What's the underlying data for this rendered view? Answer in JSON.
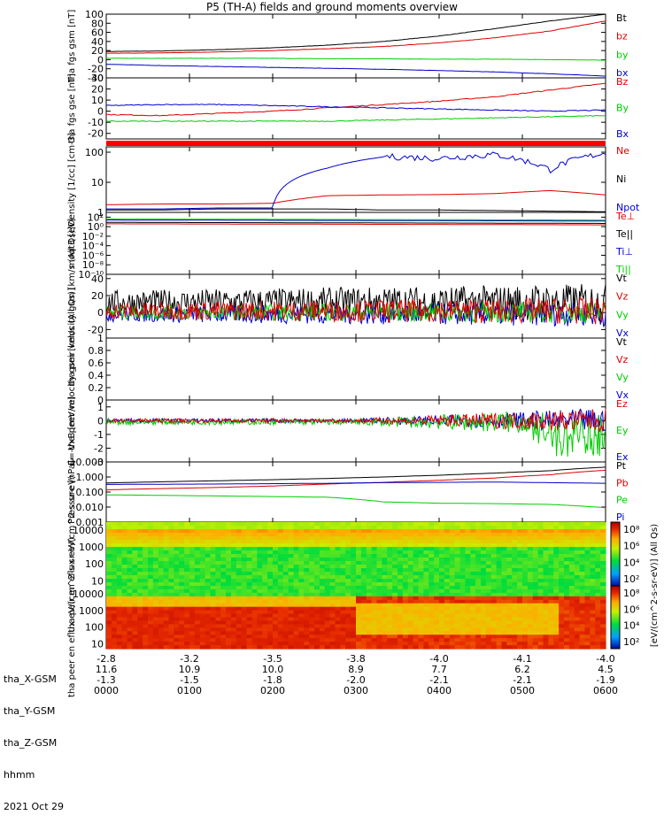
{
  "title": "P5 (TH-A) fields and ground moments overview",
  "chart_data": {
    "type": "line",
    "panels": [
      {
        "ylabel": "tha fgs gsm [nT]",
        "ylim": [
          -40,
          100
        ],
        "yticks": [
          -40,
          -20,
          0,
          20,
          40,
          60,
          80,
          100
        ],
        "series": [
          {
            "name": "Bt",
            "color": "#000000",
            "values": [
              18,
              19,
              22,
              26,
              32,
              40,
              52,
              68,
              85,
              100
            ]
          },
          {
            "name": "bz",
            "color": "#dd0000",
            "values": [
              14,
              15,
              17,
              20,
              24,
              29,
              37,
              48,
              63,
              85
            ]
          },
          {
            "name": "by",
            "color": "#00cc00",
            "values": [
              3,
              3,
              3,
              3,
              2,
              2,
              1,
              1,
              0,
              -1
            ]
          },
          {
            "name": "bx",
            "color": "#0000cc",
            "values": [
              -10,
              -13,
              -15,
              -17,
              -19,
              -21,
              -24,
              -27,
              -31,
              -36
            ]
          }
        ]
      },
      {
        "ylabel": "tha fgs gse [nT]",
        "ylim": [
          -25,
          30
        ],
        "yticks": [
          -20,
          -10,
          0,
          10,
          20,
          30
        ],
        "series": [
          {
            "name": "Bz",
            "color": "#dd0000",
            "values": [
              -3,
              -4,
              -2,
              0,
              3,
              6,
              9,
              13,
              19,
              25
            ]
          },
          {
            "name": "By",
            "color": "#00cc00",
            "values": [
              -9,
              -9,
              -9,
              -9,
              -9,
              -8,
              -7,
              -6,
              -5,
              -4
            ]
          },
          {
            "name": "Bx",
            "color": "#0000cc",
            "values": [
              5,
              6,
              6,
              5,
              4,
              3,
              2,
              1,
              0,
              1
            ]
          }
        ]
      },
      {
        "ylabel": "Density [1/cc] [cm-3]",
        "log": true,
        "ylim": [
          1,
          150
        ],
        "yticks": [
          1,
          10,
          100
        ],
        "series": [
          {
            "name": "Ne",
            "color": "#dd0000",
            "values": [
              1.8,
              1.9,
              1.9,
              2.0,
              3.6,
              3.8,
              3.9,
              4.2,
              5.3,
              3.8
            ]
          },
          {
            "name": "Ni",
            "color": "#000000",
            "values": [
              1.2,
              1.2,
              1.3,
              1.3,
              1.3,
              1.2,
              1.2,
              1.15,
              1.1,
              1.05
            ]
          },
          {
            "name": "Npot",
            "color": "#0000cc",
            "values": [
              1.3,
              1.3,
              1.4,
              1.4,
              30,
              70,
              60,
              80,
              25,
              90
            ]
          }
        ]
      },
      {
        "ylabel": "moqt3 [eV]",
        "log": true,
        "ylim": [
          1e-10,
          1000
        ],
        "yticks": [
          "10^-10",
          "10^-8",
          "10^-6",
          "10^-4",
          "10^-2",
          "10^0",
          "10^2"
        ],
        "series": [
          {
            "name": "Te⊥",
            "color": "#dd0000",
            "values": []
          },
          {
            "name": "Te||",
            "color": "#000000",
            "values": []
          },
          {
            "name": "Ti⊥",
            "color": "#0000cc",
            "values": []
          },
          {
            "name": "Ti||",
            "color": "#00cc00",
            "values": []
          }
        ]
      },
      {
        "ylabel": "tha peir velocity gsm [km/s (All Qs)]",
        "ylim": [
          -30,
          45
        ],
        "yticks": [
          -20,
          0,
          20,
          40
        ],
        "series": [
          {
            "name": "Vt",
            "color": "#000000"
          },
          {
            "name": "Vz",
            "color": "#dd0000"
          },
          {
            "name": "Vy",
            "color": "#00cc00"
          },
          {
            "name": "Vx",
            "color": "#0000cc"
          }
        ]
      },
      {
        "ylabel": "tha peer velocity gsm [km/s (All Qs)]",
        "ylim": [
          0,
          1
        ],
        "yticks": [
          0.0,
          0.2,
          0.4,
          0.6,
          0.8,
          1.0
        ],
        "series": [
          {
            "name": "Vt",
            "color": "#000000"
          },
          {
            "name": "Vz",
            "color": "#dd0000"
          },
          {
            "name": "Vy",
            "color": "#00cc00"
          },
          {
            "name": "Vx",
            "color": "#0000cc"
          }
        ]
      },
      {
        "ylabel": "E=-VxB [mV/m]",
        "ylim": [
          -3,
          1.5
        ],
        "yticks": [
          -3,
          -2,
          -1,
          0,
          1
        ],
        "series": [
          {
            "name": "Ez",
            "color": "#dd0000"
          },
          {
            "name": "Ey",
            "color": "#00cc00"
          },
          {
            "name": "Ex",
            "color": "#0000cc"
          }
        ]
      },
      {
        "ylabel": "Pressure [nPa]",
        "log": true,
        "ylim": [
          0.001,
          10
        ],
        "yticks": [
          "10.000",
          "1.000",
          "0.100",
          "0.010",
          "0.001"
        ],
        "series": [
          {
            "name": "Pt",
            "color": "#000000",
            "values": [
              0.4,
              0.48,
              0.56,
              0.66,
              0.8,
              1.0,
              1.3,
              1.8,
              2.6,
              4.5
            ]
          },
          {
            "name": "Pb",
            "color": "#dd0000",
            "values": [
              0.14,
              0.17,
              0.2,
              0.25,
              0.34,
              0.44,
              0.6,
              0.85,
              1.4,
              2.8
            ]
          },
          {
            "name": "Pe",
            "color": "#00cc00",
            "values": [
              0.065,
              0.06,
              0.055,
              0.05,
              0.045,
              0.022,
              0.018,
              0.017,
              0.015,
              0.009
            ]
          },
          {
            "name": "Pi",
            "color": "#0000cc",
            "values": [
              0.32,
              0.33,
              0.34,
              0.36,
              0.38,
              0.42,
              0.44,
              0.46,
              0.42,
              0.38
            ]
          }
        ]
      },
      {
        "ylabel": "tha peir en eflux eV/(cm^2-s-sr-eV)",
        "log": true,
        "ylim": [
          5,
          30000
        ],
        "yticks": [
          "10000",
          "1000",
          "100",
          "10"
        ],
        "type": "spectrogram"
      },
      {
        "ylabel": "tha peer en eflux eV/(cm^2-s-sr-eV)",
        "log": true,
        "ylim": [
          5,
          30000
        ],
        "yticks": [
          "10000",
          "1000",
          "100",
          "10"
        ],
        "type": "spectrogram"
      }
    ],
    "colorbar_labels": {
      "top": [
        "10^8",
        "10^6",
        "10^4",
        "10^2"
      ],
      "bottom": [
        "10^8",
        "10^6",
        "10^4",
        "10^2"
      ],
      "units": "[eV/(cm^2-s-sr-eV)] (All Qs)"
    },
    "x_axis": {
      "row_labels": [
        "tha_X-GSM",
        "tha_Y-GSM",
        "tha_Z-GSM",
        "hhmm",
        "2021 Oct 29"
      ],
      "ticks": [
        {
          "x": "-2.8",
          "y": "11.6",
          "z": "-1.3",
          "t": "0000"
        },
        {
          "x": "-3.2",
          "y": "10.9",
          "z": "-1.5",
          "t": "0100"
        },
        {
          "x": "-3.5",
          "y": "10.0",
          "z": "-1.8",
          "t": "0200"
        },
        {
          "x": "-3.8",
          "y": "8.9",
          "z": "-2.0",
          "t": "0300"
        },
        {
          "x": "-4.0",
          "y": "7.7",
          "z": "-2.1",
          "t": "0400"
        },
        {
          "x": "-4.1",
          "y": "6.2",
          "z": "-2.1",
          "t": "0500"
        },
        {
          "x": "-4.0",
          "y": "4.5",
          "z": "-1.9",
          "t": "0600"
        }
      ]
    }
  }
}
